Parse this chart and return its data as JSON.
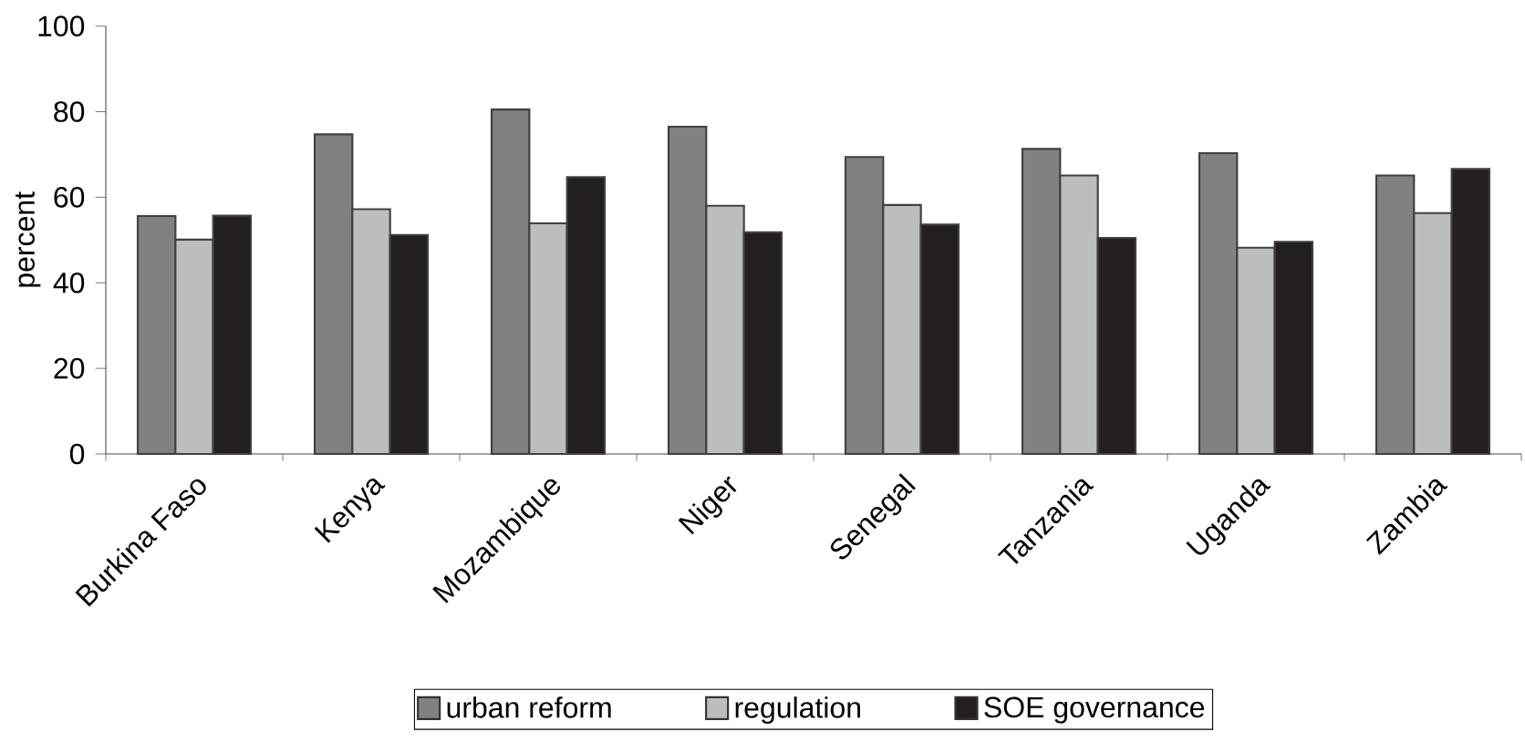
{
  "chart_data": {
    "type": "bar",
    "ylabel": "percent",
    "categories": [
      "Burkina Faso",
      "Kenya",
      "Mozambique",
      "Niger",
      "Senegal",
      "Tanzania",
      "Uganda",
      "Zambia"
    ],
    "series": [
      {
        "name": "urban reform",
        "color": "#808183",
        "values": [
          55.6,
          74.7,
          80.5,
          76.5,
          69.4,
          71.3,
          70.3,
          65.1
        ]
      },
      {
        "name": "regulation",
        "color": "#bcbdbf",
        "values": [
          50.1,
          57.2,
          53.9,
          58.0,
          58.2,
          65.1,
          48.2,
          56.3
        ]
      },
      {
        "name": "SOE governance",
        "color": "#231f20",
        "values": [
          55.7,
          51.2,
          64.7,
          51.8,
          53.6,
          50.5,
          49.6,
          66.6
        ]
      }
    ],
    "ylim": [
      0,
      100
    ],
    "yticks": [
      0,
      20,
      40,
      60,
      80,
      100
    ],
    "grid": false,
    "legend": "bottom"
  }
}
